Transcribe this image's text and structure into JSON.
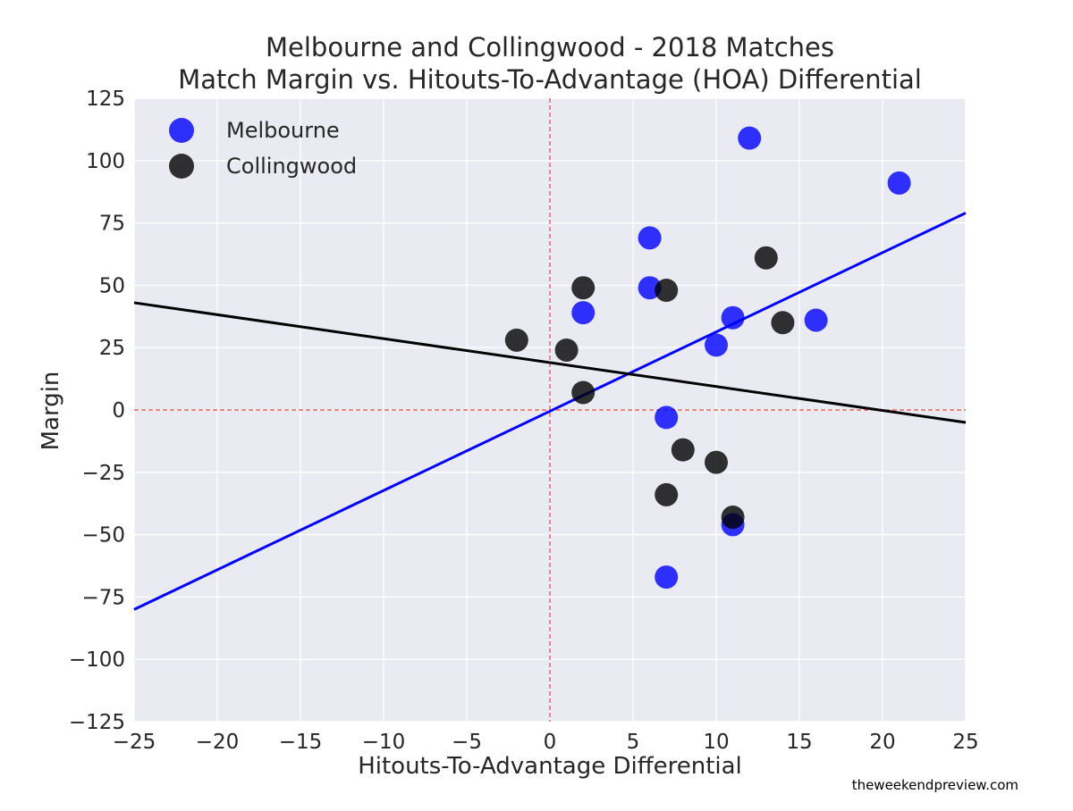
{
  "chart_data": {
    "type": "scatter",
    "title": "Melbourne and Collingwood - 2018 Matches",
    "subtitle": "Match Margin vs. Hitouts-To-Advantage (HOA) Differential",
    "xlabel": "Hitouts-To-Advantage Differential",
    "ylabel": "Margin",
    "xlim": [
      -25,
      25
    ],
    "ylim": [
      -125,
      125
    ],
    "xticks": [
      -25,
      -20,
      -15,
      -10,
      -5,
      0,
      5,
      10,
      15,
      20,
      25
    ],
    "yticks": [
      -125,
      -100,
      -75,
      -50,
      -25,
      0,
      25,
      50,
      75,
      100,
      125
    ],
    "xtick_labels": [
      "−25",
      "−20",
      "−15",
      "−10",
      "−5",
      "0",
      "5",
      "10",
      "15",
      "20",
      "25"
    ],
    "ytick_labels": [
      "−125",
      "−100",
      "−75",
      "−50",
      "−25",
      "0",
      "25",
      "50",
      "75",
      "100",
      "125"
    ],
    "grid": true,
    "legend_position": "top-left",
    "reference_lines": {
      "x": 0,
      "y": 0,
      "color": "#e8413a",
      "style": "dashed"
    },
    "series": [
      {
        "name": "Melbourne",
        "color": "#0000ff",
        "points": [
          [
            12,
            109
          ],
          [
            21,
            91
          ],
          [
            6,
            69
          ],
          [
            6,
            49
          ],
          [
            2,
            39
          ],
          [
            11,
            37
          ],
          [
            16,
            36
          ],
          [
            10,
            26
          ],
          [
            7,
            -3
          ],
          [
            11,
            -46
          ],
          [
            7,
            -67
          ]
        ],
        "trend": {
          "color": "#0000ff",
          "x": [
            -25,
            25
          ],
          "y": [
            -80,
            79
          ]
        }
      },
      {
        "name": "Collingwood",
        "color": "#000000",
        "points": [
          [
            13,
            61
          ],
          [
            2,
            49
          ],
          [
            7,
            48
          ],
          [
            14,
            35
          ],
          [
            -2,
            28
          ],
          [
            1,
            24
          ],
          [
            2,
            7
          ],
          [
            8,
            -16
          ],
          [
            10,
            -21
          ],
          [
            7,
            -34
          ],
          [
            11,
            -43
          ]
        ],
        "trend": {
          "color": "#000000",
          "x": [
            -25,
            25
          ],
          "y": [
            43,
            -5
          ]
        }
      }
    ],
    "watermark": "theweekendpreview.com"
  }
}
